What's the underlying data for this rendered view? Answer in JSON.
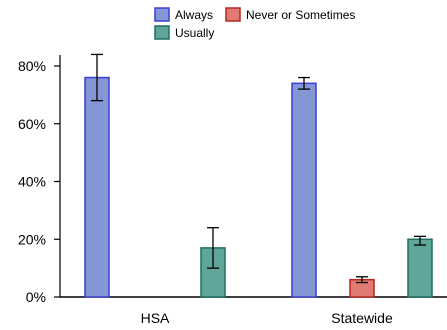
{
  "chart_data": {
    "type": "bar",
    "categories": [
      "HSA",
      "Statewide"
    ],
    "series": [
      {
        "name": "Always",
        "color": "#8497d4",
        "stroke": "#3a3fd1",
        "values": [
          76,
          74
        ],
        "err_low": [
          68,
          72
        ],
        "err_high": [
          84,
          76
        ]
      },
      {
        "name": "Never or Sometimes",
        "color": "#e07a72",
        "stroke": "#b5271f",
        "values": [
          0,
          6
        ],
        "err_low": [
          null,
          5
        ],
        "err_high": [
          null,
          7
        ]
      },
      {
        "name": "Usually",
        "color": "#5fa59a",
        "stroke": "#1f6f62",
        "values": [
          17,
          20
        ],
        "err_low": [
          10,
          18
        ],
        "err_high": [
          24,
          21
        ]
      }
    ],
    "ylim": [
      0,
      80
    ],
    "yticks": [
      0,
      20,
      40,
      60,
      80
    ],
    "ytick_labels": [
      "0%",
      "20%",
      "40%",
      "60%",
      "80%"
    ],
    "legend_position": "top-center",
    "grid": false
  }
}
